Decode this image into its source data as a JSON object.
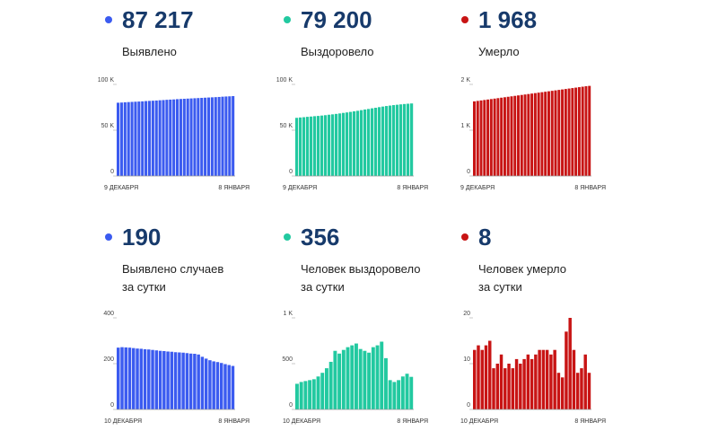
{
  "panels": [
    {
      "id": "p1",
      "value": "87 217",
      "label": [
        "Выявлено"
      ],
      "color": "#3b5bf0"
    },
    {
      "id": "p2",
      "value": "79 200",
      "label": [
        "Выздоровело"
      ],
      "color": "#22c9a0"
    },
    {
      "id": "p3",
      "value": "1 968",
      "label": [
        "Умерло"
      ],
      "color": "#c81414"
    },
    {
      "id": "p4",
      "value": "190",
      "label": [
        "Выявлено случаев",
        "за сутки"
      ],
      "color": "#3b5bf0"
    },
    {
      "id": "p5",
      "value": "356",
      "label": [
        "Человек выздоровело",
        "за сутки"
      ],
      "color": "#22c9a0"
    },
    {
      "id": "p6",
      "value": "8",
      "label": [
        "Человек умерло",
        "за сутки"
      ],
      "color": "#c81414"
    }
  ],
  "chart_data": [
    {
      "type": "bar",
      "series": [
        {
          "values": [
            80000,
            80200,
            80500,
            80700,
            80900,
            81100,
            81300,
            81500,
            81800,
            82000,
            82200,
            82400,
            82700,
            82900,
            83200,
            83400,
            83600,
            83900,
            84100,
            84300,
            84500,
            84700,
            84900,
            85100,
            85300,
            85500,
            85700,
            85900,
            86100,
            86300,
            86600,
            86800,
            87000,
            87217
          ]
        }
      ],
      "ylim": [
        0,
        100000
      ],
      "yticks": [
        "0",
        "50 K",
        "100 K"
      ],
      "xstart": "9 ДЕКАБРЯ",
      "xend": "8 ЯНВАРЯ",
      "color": "#3b5bf0"
    },
    {
      "type": "bar",
      "series": [
        {
          "values": [
            63500,
            63900,
            64200,
            64600,
            64900,
            65300,
            65600,
            66000,
            66400,
            66900,
            67300,
            67800,
            68300,
            68900,
            69400,
            70000,
            70600,
            71200,
            71900,
            72600,
            73200,
            73900,
            74500,
            75200,
            75800,
            76400,
            76900,
            77400,
            77800,
            78200,
            78600,
            78900,
            79200
          ]
        }
      ],
      "ylim": [
        0,
        100000
      ],
      "yticks": [
        "0",
        "50 K",
        "100 K"
      ],
      "xstart": "9 ДЕКАБРЯ",
      "xend": "8 ЯНВАРЯ",
      "color": "#22c9a0"
    },
    {
      "type": "bar",
      "series": [
        {
          "values": [
            1630,
            1640,
            1650,
            1660,
            1670,
            1680,
            1690,
            1700,
            1710,
            1720,
            1730,
            1740,
            1750,
            1760,
            1770,
            1780,
            1790,
            1800,
            1810,
            1820,
            1830,
            1840,
            1850,
            1860,
            1870,
            1880,
            1890,
            1900,
            1910,
            1920,
            1930,
            1940,
            1950,
            1960,
            1968
          ]
        }
      ],
      "ylim": [
        0,
        2000
      ],
      "yticks": [
        "0",
        "1 K",
        "2 K"
      ],
      "xstart": "9 ДЕКАБРЯ",
      "xend": "8 ЯНВАРЯ",
      "color": "#c81414"
    },
    {
      "type": "bar",
      "series": [
        {
          "values": [
            270,
            272,
            271,
            270,
            268,
            266,
            265,
            263,
            262,
            260,
            258,
            256,
            255,
            253,
            252,
            250,
            249,
            248,
            246,
            244,
            243,
            240,
            230,
            222,
            215,
            210,
            207,
            203,
            198,
            194,
            190
          ]
        }
      ],
      "ylim": [
        0,
        400
      ],
      "yticks": [
        "0",
        "200",
        "400"
      ],
      "xstart": "10 ДЕКАБРЯ",
      "xend": "8 ЯНВАРЯ",
      "color": "#3b5bf0"
    },
    {
      "type": "bar",
      "series": [
        {
          "values": [
            280,
            300,
            310,
            320,
            330,
            360,
            400,
            450,
            520,
            640,
            610,
            650,
            680,
            700,
            720,
            660,
            640,
            620,
            680,
            700,
            740,
            560,
            320,
            300,
            320,
            360,
            390,
            356
          ]
        }
      ],
      "ylim": [
        0,
        1000
      ],
      "yticks": [
        "0",
        "500",
        "1 K"
      ],
      "xstart": "10 ДЕКАБРЯ",
      "xend": "8 ЯНВАРЯ",
      "color": "#22c9a0"
    },
    {
      "type": "bar",
      "series": [
        {
          "values": [
            13,
            14,
            13,
            14,
            15,
            9,
            10,
            12,
            9,
            10,
            9,
            11,
            10,
            11,
            12,
            11,
            12,
            13,
            13,
            13,
            12,
            13,
            8,
            7,
            17,
            20,
            13,
            8,
            9,
            12,
            8
          ]
        }
      ],
      "ylim": [
        0,
        20
      ],
      "yticks": [
        "0",
        "10",
        "20"
      ],
      "xstart": "10 ДЕКАБРЯ",
      "xend": "8 ЯНВАРЯ",
      "color": "#c81414"
    }
  ]
}
